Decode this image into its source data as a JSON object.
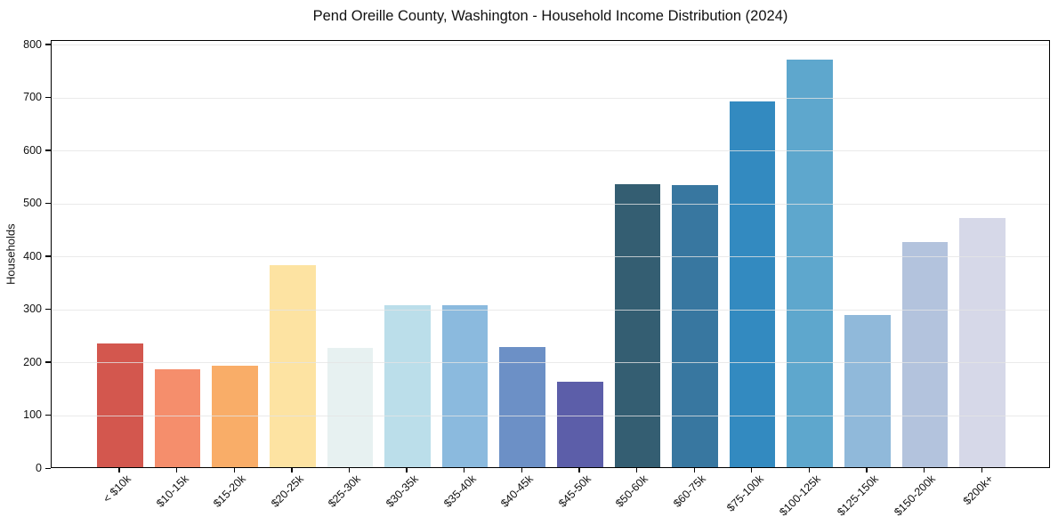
{
  "chart_data": {
    "type": "bar",
    "title": "Pend Oreille County, Washington - Household Income Distribution (2024)",
    "xlabel": "",
    "ylabel": "Households",
    "categories": [
      "< $10k",
      "$10-15k",
      "$15-20k",
      "$20-25k",
      "$25-30k",
      "$30-35k",
      "$35-40k",
      "$40-45k",
      "$45-50k",
      "$50-60k",
      "$60-75k",
      "$75-100k",
      "$100-125k",
      "$125-150k",
      "$150-200k",
      "$200k+"
    ],
    "values": [
      233,
      184,
      192,
      382,
      225,
      306,
      305,
      226,
      162,
      535,
      532,
      691,
      770,
      288,
      425,
      471
    ],
    "bar_colors": [
      "#d3574e",
      "#f58e6c",
      "#f9ad68",
      "#fde3a2",
      "#e7f1f1",
      "#bbdeea",
      "#8bbade",
      "#6c90c6",
      "#5c5ea9",
      "#345e72",
      "#3877a0",
      "#338ac0",
      "#5ea7cd",
      "#90b9da",
      "#b3c3dd",
      "#d6d8e8"
    ],
    "yticks": [
      0,
      100,
      200,
      300,
      400,
      500,
      600,
      700,
      800
    ],
    "ylim": [
      0,
      808
    ],
    "xlim": [
      -1.19,
      16.19
    ],
    "bar_width": 0.8,
    "grid": "horizontal-on",
    "gridline_color": "#ebebeb",
    "legend": "none",
    "xtick_rotation": 45,
    "spine_color": "#000000",
    "background_color": "#ffffff"
  }
}
